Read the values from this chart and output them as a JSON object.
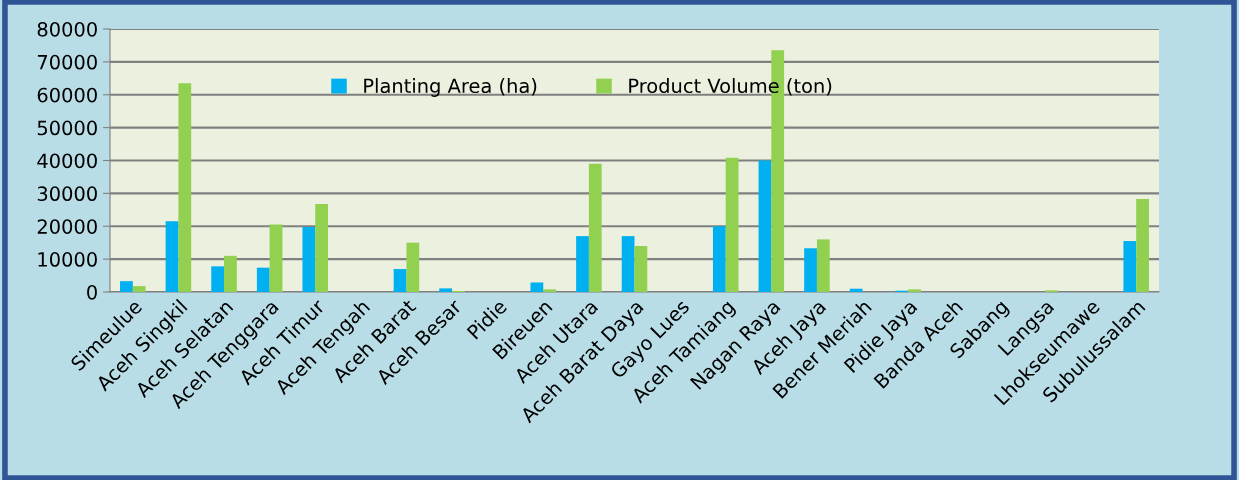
{
  "chart_data": {
    "type": "bar",
    "categories": [
      "Simeulue",
      "Aceh Singkil",
      "Aceh Selatan",
      "Aceh Tenggara",
      "Aceh Timur",
      "Aceh Tengah",
      "Aceh Barat",
      "Aceh Besar",
      "Pidie",
      "Bireuen",
      "Aceh Utara",
      "Aceh Barat Daya",
      "Gayo Lues",
      "Aceh Tamiang",
      "Nagan Raya",
      "Aceh Jaya",
      "Bener Meriah",
      "Pidie Jaya",
      "Banda Aceh",
      "Sabang",
      "Langsa",
      "Lhokseumawe",
      "Subulussalam"
    ],
    "series": [
      {
        "name": "Planting Area (ha)",
        "color": "#00b0f0",
        "values": [
          3300,
          21500,
          7800,
          7400,
          19800,
          0,
          7000,
          1100,
          0,
          2900,
          17000,
          17000,
          0,
          20000,
          40000,
          13300,
          1000,
          400,
          0,
          0,
          null,
          0,
          15500
        ]
      },
      {
        "name": "Product Volume (ton)",
        "color": "#92d050",
        "values": [
          1800,
          63500,
          11000,
          20500,
          26800,
          0,
          15000,
          300,
          0,
          800,
          39000,
          14000,
          0,
          40800,
          73500,
          16000,
          0,
          800,
          0,
          0,
          500,
          0,
          28300
        ]
      }
    ],
    "ylim": [
      0,
      80000
    ],
    "yticks": [
      0,
      10000,
      20000,
      30000,
      40000,
      50000,
      60000,
      70000,
      80000
    ],
    "grid": "y",
    "legend": "top"
  }
}
